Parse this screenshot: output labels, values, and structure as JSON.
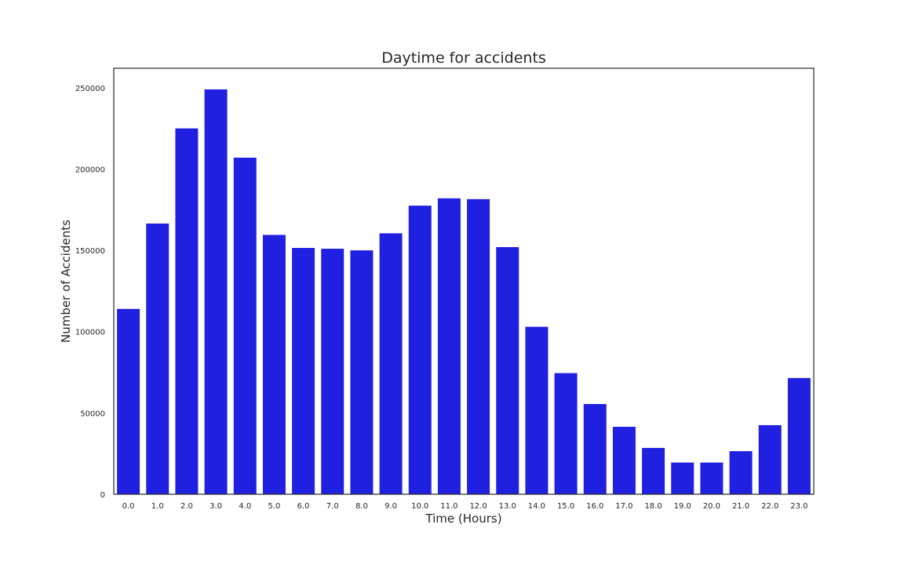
{
  "chart_data": {
    "type": "bar",
    "title": "Daytime for accidents",
    "xlabel": "Time (Hours)",
    "ylabel": "Number of Accidents",
    "categories": [
      "0.0",
      "1.0",
      "2.0",
      "3.0",
      "4.0",
      "5.0",
      "6.0",
      "7.0",
      "8.0",
      "9.0",
      "10.0",
      "11.0",
      "12.0",
      "13.0",
      "14.0",
      "15.0",
      "16.0",
      "17.0",
      "18.0",
      "19.0",
      "20.0",
      "21.0",
      "22.0",
      "23.0"
    ],
    "values": [
      114000,
      166500,
      225000,
      249000,
      207000,
      159500,
      151500,
      151000,
      150000,
      160500,
      177500,
      182000,
      181500,
      152000,
      103000,
      74500,
      55500,
      41500,
      28500,
      19500,
      19500,
      26500,
      42500,
      71500
    ],
    "ylim": [
      0,
      262000
    ],
    "yticks": [
      0,
      50000,
      100000,
      150000,
      200000,
      250000
    ],
    "bar_color": "#2020e0",
    "grid": false,
    "legend": false
  }
}
